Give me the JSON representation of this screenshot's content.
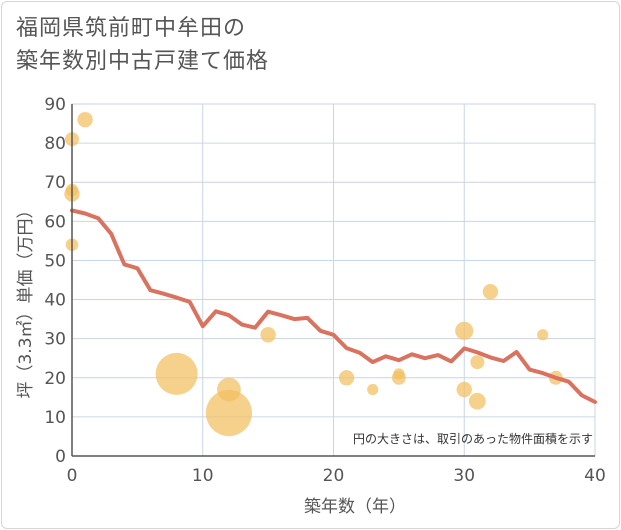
{
  "title_line1": "福岡県筑前町中牟田の",
  "title_line2": "築年数別中古戸建て価格",
  "chart_data": {
    "type": "scatter",
    "title": "福岡県筑前町中牟田の築年数別中古戸建て価格",
    "xlabel": "築年数（年）",
    "ylabel": "坪（3.3㎡）単価（万円）",
    "xlim": [
      0,
      40
    ],
    "ylim": [
      0,
      90
    ],
    "xticks": [
      0,
      10,
      20,
      30,
      40
    ],
    "yticks": [
      0,
      10,
      20,
      30,
      40,
      50,
      60,
      70,
      80,
      90
    ],
    "note": "円の大きさは、取引のあった物件面積を示す",
    "colors": {
      "bubble": "#f3bf60",
      "line": "#d9735f",
      "grid": "#c9d6e6",
      "text": "#555555"
    },
    "bubbles": [
      {
        "x": 0,
        "y": 81,
        "size": 1.0
      },
      {
        "x": 1,
        "y": 86,
        "size": 1.1
      },
      {
        "x": 0,
        "y": 67,
        "size": 1.1
      },
      {
        "x": 0,
        "y": 68,
        "size": 0.9
      },
      {
        "x": 0,
        "y": 54,
        "size": 0.9
      },
      {
        "x": 8,
        "y": 21,
        "size": 3.0
      },
      {
        "x": 12,
        "y": 17,
        "size": 1.7
      },
      {
        "x": 12,
        "y": 11,
        "size": 3.3
      },
      {
        "x": 15,
        "y": 31,
        "size": 1.1
      },
      {
        "x": 21,
        "y": 20,
        "size": 1.1
      },
      {
        "x": 23,
        "y": 17,
        "size": 0.8
      },
      {
        "x": 25,
        "y": 20,
        "size": 1.0
      },
      {
        "x": 25,
        "y": 21,
        "size": 0.8
      },
      {
        "x": 30,
        "y": 32,
        "size": 1.3
      },
      {
        "x": 30,
        "y": 17,
        "size": 1.1
      },
      {
        "x": 31,
        "y": 24,
        "size": 1.0
      },
      {
        "x": 31,
        "y": 14,
        "size": 1.2
      },
      {
        "x": 32,
        "y": 42,
        "size": 1.1
      },
      {
        "x": 36,
        "y": 31,
        "size": 0.8
      },
      {
        "x": 37,
        "y": 20,
        "size": 1.0
      }
    ],
    "trend": {
      "x": [
        0,
        1,
        2,
        3,
        4,
        5,
        6,
        7,
        8,
        9,
        10,
        11,
        12,
        13,
        14,
        15,
        16,
        17,
        18,
        19,
        20,
        21,
        22,
        23,
        24,
        25,
        26,
        27,
        28,
        29,
        30,
        31,
        32,
        33,
        34,
        35,
        36,
        37,
        38,
        39,
        40
      ],
      "y": [
        62.8,
        62,
        60.8,
        56.8,
        49,
        48,
        42.4,
        41.5,
        40.5,
        39.4,
        33.2,
        37,
        36,
        33.6,
        32.8,
        36.9,
        36,
        35,
        35.3,
        32,
        31,
        27.6,
        26.4,
        24,
        25.5,
        24.5,
        26,
        25,
        25.8,
        24.2,
        27.5,
        26.5,
        25.2,
        24.3,
        26.6,
        22.1,
        21.2,
        20,
        19,
        15.5,
        13.8
      ]
    }
  }
}
